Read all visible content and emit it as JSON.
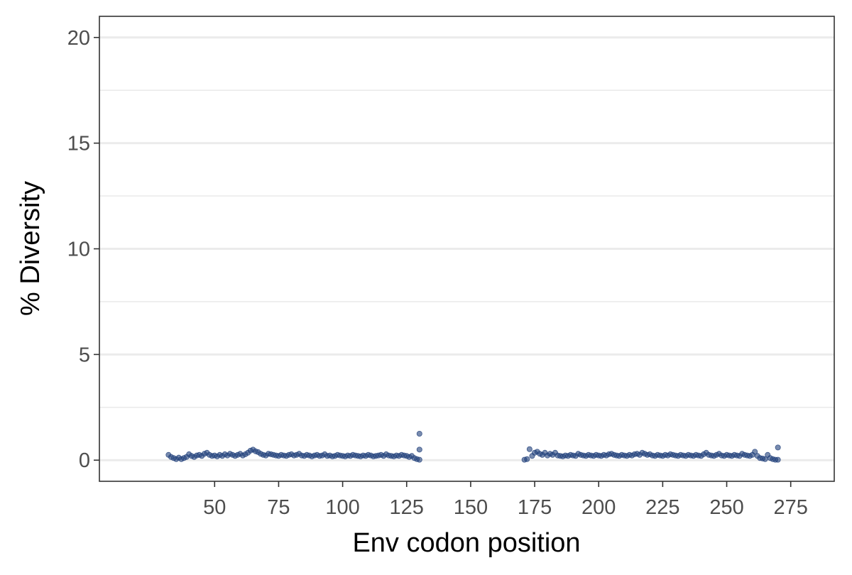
{
  "chart_data": {
    "type": "scatter",
    "title": "",
    "xlabel": "Env codon position",
    "ylabel": "% Diversity",
    "xlim": [
      5,
      292
    ],
    "ylim": [
      -1,
      21
    ],
    "x_ticks": [
      50,
      75,
      100,
      125,
      150,
      175,
      200,
      225,
      250,
      275
    ],
    "x_tick_labels": [
      "50",
      "75",
      "100",
      "125",
      "150",
      "175",
      "200",
      "225",
      "250",
      "275"
    ],
    "y_ticks": [
      0,
      5,
      10,
      15,
      20
    ],
    "y_tick_labels": [
      "0",
      "5",
      "10",
      "15",
      "20"
    ],
    "grid": true,
    "legend": "none",
    "point_color": "#1f3f7a",
    "series": [
      {
        "points": [
          [
            32,
            0.25
          ],
          [
            33,
            0.15
          ],
          [
            34,
            0.1
          ],
          [
            35,
            0.05
          ],
          [
            36,
            0.12
          ],
          [
            37,
            0.05
          ],
          [
            38,
            0.1
          ],
          [
            39,
            0.15
          ],
          [
            40,
            0.28
          ],
          [
            41,
            0.2
          ],
          [
            42,
            0.15
          ],
          [
            43,
            0.22
          ],
          [
            44,
            0.25
          ],
          [
            45,
            0.2
          ],
          [
            46,
            0.3
          ],
          [
            47,
            0.35
          ],
          [
            48,
            0.25
          ],
          [
            49,
            0.2
          ],
          [
            50,
            0.22
          ],
          [
            51,
            0.18
          ],
          [
            52,
            0.25
          ],
          [
            53,
            0.2
          ],
          [
            54,
            0.28
          ],
          [
            55,
            0.22
          ],
          [
            56,
            0.3
          ],
          [
            57,
            0.25
          ],
          [
            58,
            0.2
          ],
          [
            59,
            0.25
          ],
          [
            60,
            0.3
          ],
          [
            61,
            0.22
          ],
          [
            62,
            0.28
          ],
          [
            63,
            0.35
          ],
          [
            64,
            0.45
          ],
          [
            65,
            0.5
          ],
          [
            66,
            0.42
          ],
          [
            67,
            0.38
          ],
          [
            68,
            0.3
          ],
          [
            69,
            0.25
          ],
          [
            70,
            0.22
          ],
          [
            71,
            0.3
          ],
          [
            72,
            0.28
          ],
          [
            73,
            0.25
          ],
          [
            74,
            0.22
          ],
          [
            75,
            0.2
          ],
          [
            76,
            0.25
          ],
          [
            77,
            0.22
          ],
          [
            78,
            0.2
          ],
          [
            79,
            0.25
          ],
          [
            80,
            0.28
          ],
          [
            81,
            0.22
          ],
          [
            82,
            0.25
          ],
          [
            83,
            0.3
          ],
          [
            84,
            0.22
          ],
          [
            85,
            0.2
          ],
          [
            86,
            0.25
          ],
          [
            87,
            0.22
          ],
          [
            88,
            0.18
          ],
          [
            89,
            0.22
          ],
          [
            90,
            0.25
          ],
          [
            91,
            0.2
          ],
          [
            92,
            0.22
          ],
          [
            93,
            0.28
          ],
          [
            94,
            0.2
          ],
          [
            95,
            0.22
          ],
          [
            96,
            0.18
          ],
          [
            97,
            0.2
          ],
          [
            98,
            0.25
          ],
          [
            99,
            0.22
          ],
          [
            100,
            0.2
          ],
          [
            101,
            0.18
          ],
          [
            102,
            0.22
          ],
          [
            103,
            0.2
          ],
          [
            104,
            0.25
          ],
          [
            105,
            0.22
          ],
          [
            106,
            0.2
          ],
          [
            107,
            0.18
          ],
          [
            108,
            0.22
          ],
          [
            109,
            0.2
          ],
          [
            110,
            0.25
          ],
          [
            111,
            0.22
          ],
          [
            112,
            0.18
          ],
          [
            113,
            0.2
          ],
          [
            114,
            0.22
          ],
          [
            115,
            0.25
          ],
          [
            116,
            0.2
          ],
          [
            117,
            0.28
          ],
          [
            118,
            0.22
          ],
          [
            119,
            0.2
          ],
          [
            120,
            0.18
          ],
          [
            121,
            0.22
          ],
          [
            122,
            0.2
          ],
          [
            123,
            0.25
          ],
          [
            124,
            0.22
          ],
          [
            125,
            0.2
          ],
          [
            126,
            0.15
          ],
          [
            127,
            0.2
          ],
          [
            128,
            0.1
          ],
          [
            129,
            0.05
          ],
          [
            130,
            1.25
          ],
          [
            130,
            0.5
          ],
          [
            130,
            0.02
          ],
          [
            171,
            0.02
          ],
          [
            172,
            0.05
          ],
          [
            173,
            0.52
          ],
          [
            174,
            0.2
          ],
          [
            175,
            0.35
          ],
          [
            176,
            0.4
          ],
          [
            177,
            0.3
          ],
          [
            178,
            0.25
          ],
          [
            179,
            0.35
          ],
          [
            180,
            0.22
          ],
          [
            181,
            0.3
          ],
          [
            182,
            0.25
          ],
          [
            183,
            0.35
          ],
          [
            184,
            0.22
          ],
          [
            185,
            0.2
          ],
          [
            186,
            0.18
          ],
          [
            187,
            0.22
          ],
          [
            188,
            0.2
          ],
          [
            189,
            0.25
          ],
          [
            190,
            0.22
          ],
          [
            191,
            0.2
          ],
          [
            192,
            0.3
          ],
          [
            193,
            0.25
          ],
          [
            194,
            0.22
          ],
          [
            195,
            0.2
          ],
          [
            196,
            0.25
          ],
          [
            197,
            0.22
          ],
          [
            198,
            0.2
          ],
          [
            199,
            0.25
          ],
          [
            200,
            0.22
          ],
          [
            201,
            0.2
          ],
          [
            202,
            0.25
          ],
          [
            203,
            0.22
          ],
          [
            204,
            0.28
          ],
          [
            205,
            0.3
          ],
          [
            206,
            0.25
          ],
          [
            207,
            0.22
          ],
          [
            208,
            0.2
          ],
          [
            209,
            0.25
          ],
          [
            210,
            0.22
          ],
          [
            211,
            0.2
          ],
          [
            212,
            0.25
          ],
          [
            213,
            0.22
          ],
          [
            214,
            0.28
          ],
          [
            215,
            0.3
          ],
          [
            216,
            0.25
          ],
          [
            217,
            0.35
          ],
          [
            218,
            0.3
          ],
          [
            219,
            0.25
          ],
          [
            220,
            0.28
          ],
          [
            221,
            0.22
          ],
          [
            222,
            0.2
          ],
          [
            223,
            0.25
          ],
          [
            224,
            0.22
          ],
          [
            225,
            0.2
          ],
          [
            226,
            0.25
          ],
          [
            227,
            0.22
          ],
          [
            228,
            0.28
          ],
          [
            229,
            0.25
          ],
          [
            230,
            0.22
          ],
          [
            231,
            0.2
          ],
          [
            232,
            0.25
          ],
          [
            233,
            0.22
          ],
          [
            234,
            0.2
          ],
          [
            235,
            0.25
          ],
          [
            236,
            0.22
          ],
          [
            237,
            0.2
          ],
          [
            238,
            0.25
          ],
          [
            239,
            0.22
          ],
          [
            240,
            0.2
          ],
          [
            241,
            0.28
          ],
          [
            242,
            0.35
          ],
          [
            243,
            0.25
          ],
          [
            244,
            0.22
          ],
          [
            245,
            0.2
          ],
          [
            246,
            0.25
          ],
          [
            247,
            0.3
          ],
          [
            248,
            0.22
          ],
          [
            249,
            0.2
          ],
          [
            250,
            0.25
          ],
          [
            251,
            0.22
          ],
          [
            252,
            0.2
          ],
          [
            253,
            0.25
          ],
          [
            254,
            0.22
          ],
          [
            255,
            0.2
          ],
          [
            256,
            0.3
          ],
          [
            257,
            0.25
          ],
          [
            258,
            0.22
          ],
          [
            259,
            0.2
          ],
          [
            260,
            0.25
          ],
          [
            261,
            0.4
          ],
          [
            262,
            0.2
          ],
          [
            263,
            0.1
          ],
          [
            264,
            0.08
          ],
          [
            265,
            0.05
          ],
          [
            266,
            0.25
          ],
          [
            267,
            0.1
          ],
          [
            268,
            0.05
          ],
          [
            269,
            0.02
          ],
          [
            270,
            0.6
          ],
          [
            270,
            0.02
          ]
        ]
      }
    ]
  }
}
